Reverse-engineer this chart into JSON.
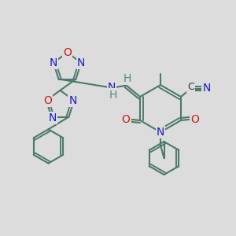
{
  "bg_color": "#dcdcdc",
  "bond_color": "#4a7a6a",
  "bond_width": 1.5,
  "atom_colors": {
    "N": "#1a1acc",
    "O": "#cc1a1a",
    "C": "#333333",
    "H": "#5a8a7a"
  }
}
